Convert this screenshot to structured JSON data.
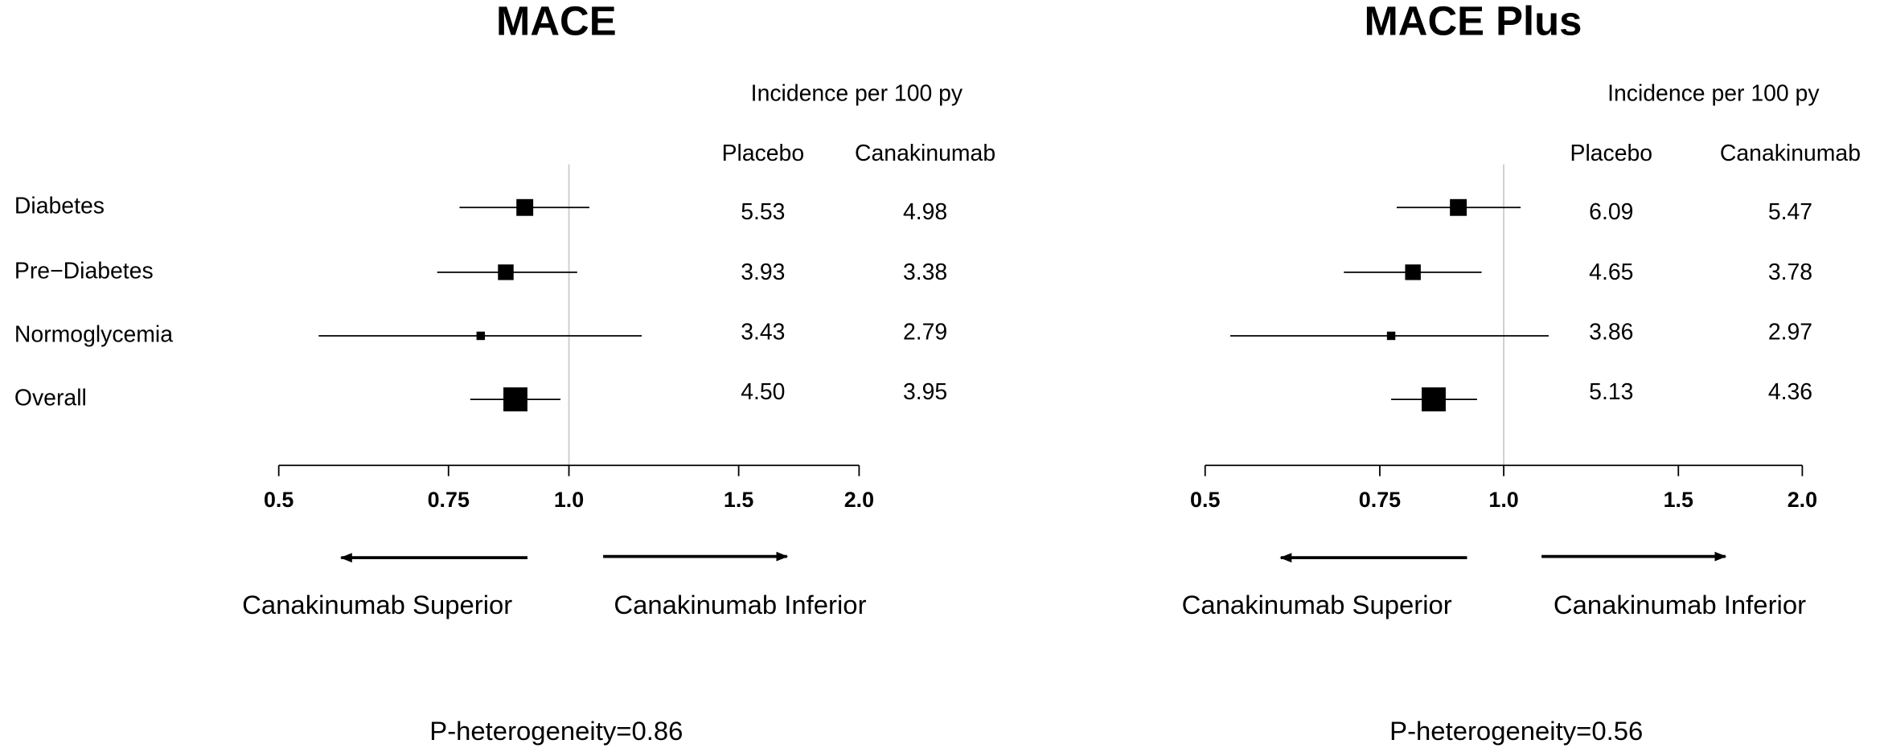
{
  "chart_data": [
    {
      "type": "forest",
      "title": "MACE",
      "column_header": "Incidence per 100 py",
      "columns": [
        "Placebo",
        "Canakinumab"
      ],
      "categories": [
        "Diabetes",
        "Pre−Diabetes",
        "Normoglycemia",
        "Overall"
      ],
      "values": [
        0.9,
        0.86,
        0.81,
        0.88
      ],
      "lower": [
        0.77,
        0.73,
        0.55,
        0.79
      ],
      "upper": [
        1.05,
        1.02,
        1.19,
        0.98
      ],
      "weights": [
        14,
        13,
        7,
        20
      ],
      "placebo": [
        "5.53",
        "3.93",
        "3.43",
        "4.50"
      ],
      "canakinumab": [
        "4.98",
        "3.38",
        "2.79",
        "3.95"
      ],
      "xlim": [
        0.5,
        2.0
      ],
      "log_x": true,
      "reference": 1,
      "xticks": [
        0.5,
        0.75,
        {
          "value": 1,
          "label": "1.0"
        },
        1.5,
        {
          "value": 2,
          "label": "2.0"
        }
      ],
      "left_arrow_label": "Canakinumab Superior",
      "right_arrow_label": "Canakinumab Inferior",
      "annotation": "P-heterogeneity=0.86",
      "color": "#000000"
    },
    {
      "type": "forest",
      "title": "MACE Plus",
      "column_header": "Incidence per 100 py",
      "columns": [
        "Placebo",
        "Canakinumab"
      ],
      "values": [
        0.9,
        0.81,
        0.77,
        0.85
      ],
      "lower": [
        0.78,
        0.69,
        0.53,
        0.77
      ],
      "upper": [
        1.04,
        0.95,
        1.11,
        0.94
      ],
      "weights": [
        14,
        13,
        7,
        20
      ],
      "placebo": [
        "6.09",
        "4.65",
        "3.86",
        "5.13"
      ],
      "canakinumab": [
        "5.47",
        "3.78",
        "2.97",
        "4.36"
      ],
      "xlim": [
        0.5,
        2.0
      ],
      "log_x": true,
      "reference": 1,
      "xticks": [
        0.5,
        0.75,
        {
          "value": 1,
          "label": "1.0"
        },
        1.5,
        {
          "value": 2,
          "label": "2.0"
        }
      ],
      "left_arrow_label": "Canakinumab Superior",
      "right_arrow_label": "Canakinumab Inferior",
      "annotation": "P-heterogeneity=0.56",
      "color": "#000000"
    }
  ]
}
